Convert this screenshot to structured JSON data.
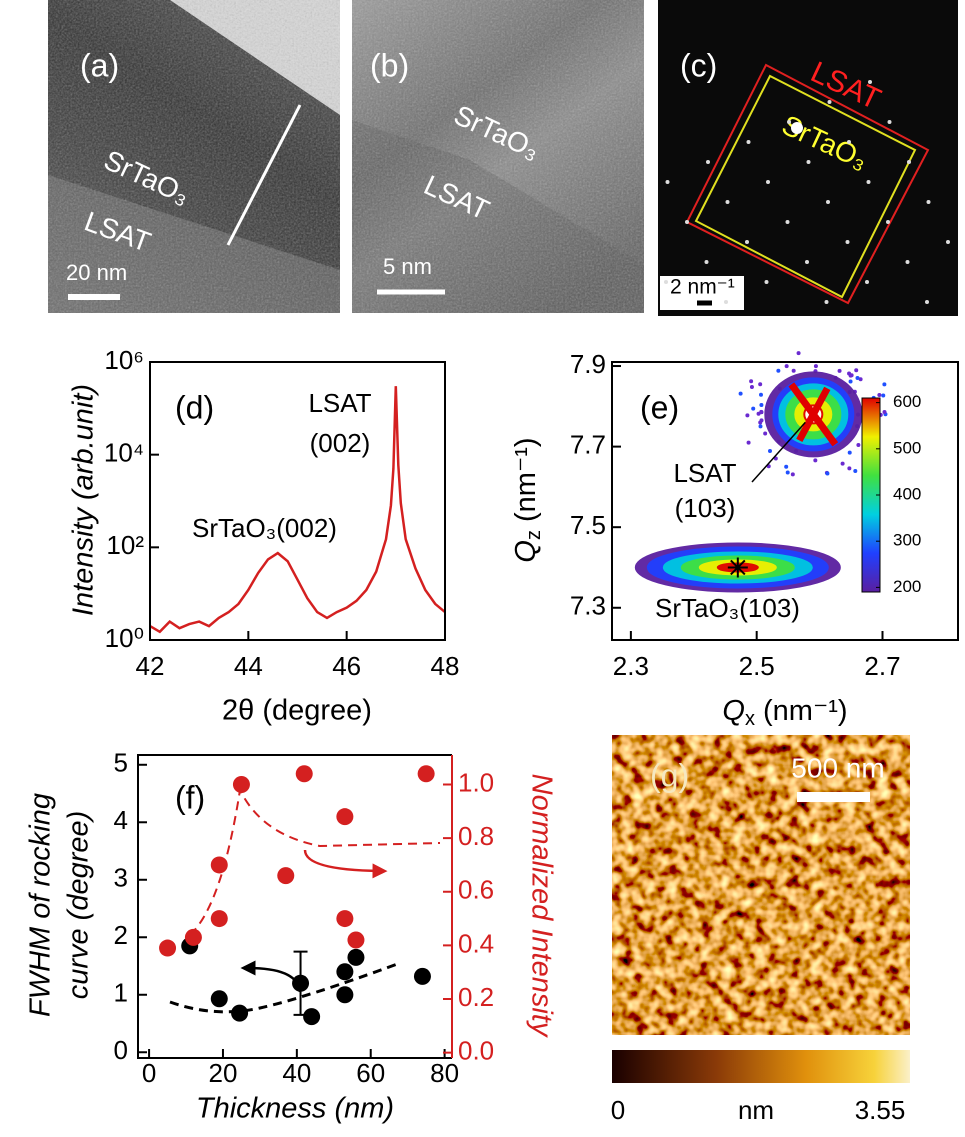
{
  "panels": {
    "a": {
      "label": "(a)",
      "film": "SrTaO₃",
      "substrate": "LSAT",
      "scale_bar": "20 nm"
    },
    "b": {
      "label": "(b)",
      "film": "SrTaO₃",
      "substrate": "LSAT",
      "scale_bar": "5 nm"
    },
    "c": {
      "label": "(c)",
      "outer": "LSAT",
      "inner": "SrTaO₃",
      "scale_bar": "2 nm⁻¹"
    },
    "g": {
      "label": "(g)",
      "scale_bar": "500 nm",
      "colorbar_unit": "nm",
      "colorbar_ticks": [
        0,
        3.55
      ]
    }
  },
  "chart_data": [
    {
      "type": "line",
      "panel_label": "(d)",
      "xlabel": "2θ (degree)",
      "ylabel": "Intensity (arb.unit)",
      "log_y": true,
      "color": "#d42020",
      "annotations": [
        "LSAT",
        "(002)",
        "SrTaO₃(002)"
      ],
      "x": [
        42.0,
        42.2,
        42.4,
        42.6,
        42.8,
        43.0,
        43.2,
        43.4,
        43.6,
        43.8,
        44.0,
        44.2,
        44.4,
        44.6,
        44.8,
        45.0,
        45.2,
        45.4,
        45.6,
        45.8,
        46.0,
        46.2,
        46.4,
        46.6,
        46.8,
        46.9,
        46.95,
        47.0,
        47.05,
        47.1,
        47.2,
        47.4,
        47.6,
        47.8,
        48.0
      ],
      "values": [
        2,
        1.5,
        2.5,
        1.8,
        2.2,
        2.5,
        2,
        3,
        4,
        6,
        12,
        28,
        55,
        75,
        50,
        20,
        8,
        4,
        3,
        4,
        5,
        7,
        12,
        30,
        150,
        800,
        5000,
        300000,
        6000,
        900,
        150,
        35,
        12,
        6,
        4
      ],
      "xlim": [
        42,
        48
      ],
      "xticks": [
        42,
        44,
        46,
        48
      ],
      "ylim": [
        1,
        1000000
      ],
      "yticks": [
        {
          "value": 1,
          "label": "10⁰"
        },
        {
          "value": 100,
          "label": "10²"
        },
        {
          "value": 10000,
          "label": "10⁴"
        },
        {
          "value": 1000000,
          "label": "10⁶"
        }
      ]
    },
    {
      "type": "contour",
      "panel_label": "(e)",
      "xlabel": {
        "symbol": "Q",
        "subscript": "x",
        "unit": " (nm⁻¹)"
      },
      "ylabel": {
        "symbol": "Q",
        "subscript": "z",
        "unit": " (nm⁻¹)"
      },
      "xlim": [
        2.27,
        2.82
      ],
      "xticks": [
        2.3,
        2.5,
        2.7
      ],
      "ylim": [
        7.22,
        7.91
      ],
      "yticks": [
        7.3,
        7.5,
        7.7,
        7.9
      ],
      "peaks": [
        {
          "label": [
            "LSAT",
            "(103)"
          ],
          "x": 2.59,
          "y": 7.78
        },
        {
          "label": [
            "SrTaO₃(103)"
          ],
          "x": 2.47,
          "y": 7.4
        }
      ],
      "colorbar": {
        "lim": [
          190,
          610
        ],
        "ticks": [
          200,
          300,
          400,
          500,
          600
        ]
      }
    },
    {
      "type": "scatter",
      "panel_label": "(f)",
      "xlabel": "Thickness (nm)",
      "ylabel": [
        "FWHM of rocking",
        "curve (degree)"
      ],
      "y2label": "Normalized Intensity",
      "xlim": [
        -3,
        82
      ],
      "xticks": [
        0,
        20,
        40,
        60,
        80
      ],
      "ylim": [
        -0.1,
        5.17
      ],
      "yticks": [
        0,
        1,
        2,
        3,
        4,
        5
      ],
      "y2lim": [
        -0.02,
        1.11
      ],
      "y2ticks": [
        {
          "value": 0,
          "label": "0.0"
        },
        0.2,
        0.4,
        0.6,
        0.8,
        {
          "value": 1,
          "label": "1.0"
        }
      ],
      "series": [
        {
          "color": "#000000",
          "x": [
            11,
            19,
            24.5,
            44,
            41,
            53,
            53,
            56,
            74
          ],
          "values": [
            1.85,
            0.93,
            0.68,
            0.62,
            1.2,
            1.4,
            1.0,
            1.65,
            1.32
          ],
          "errors": [
            null,
            null,
            null,
            null,
            0.55,
            null,
            null,
            null,
            null
          ]
        },
        {
          "color": "#d42020",
          "axis": "y2",
          "x": [
            5,
            12,
            19,
            19,
            25,
            37,
            42,
            53,
            53,
            56,
            75
          ],
          "values": [
            0.39,
            0.43,
            0.7,
            0.5,
            1.0,
            0.66,
            1.04,
            0.88,
            0.5,
            0.42,
            1.04
          ]
        }
      ]
    }
  ]
}
